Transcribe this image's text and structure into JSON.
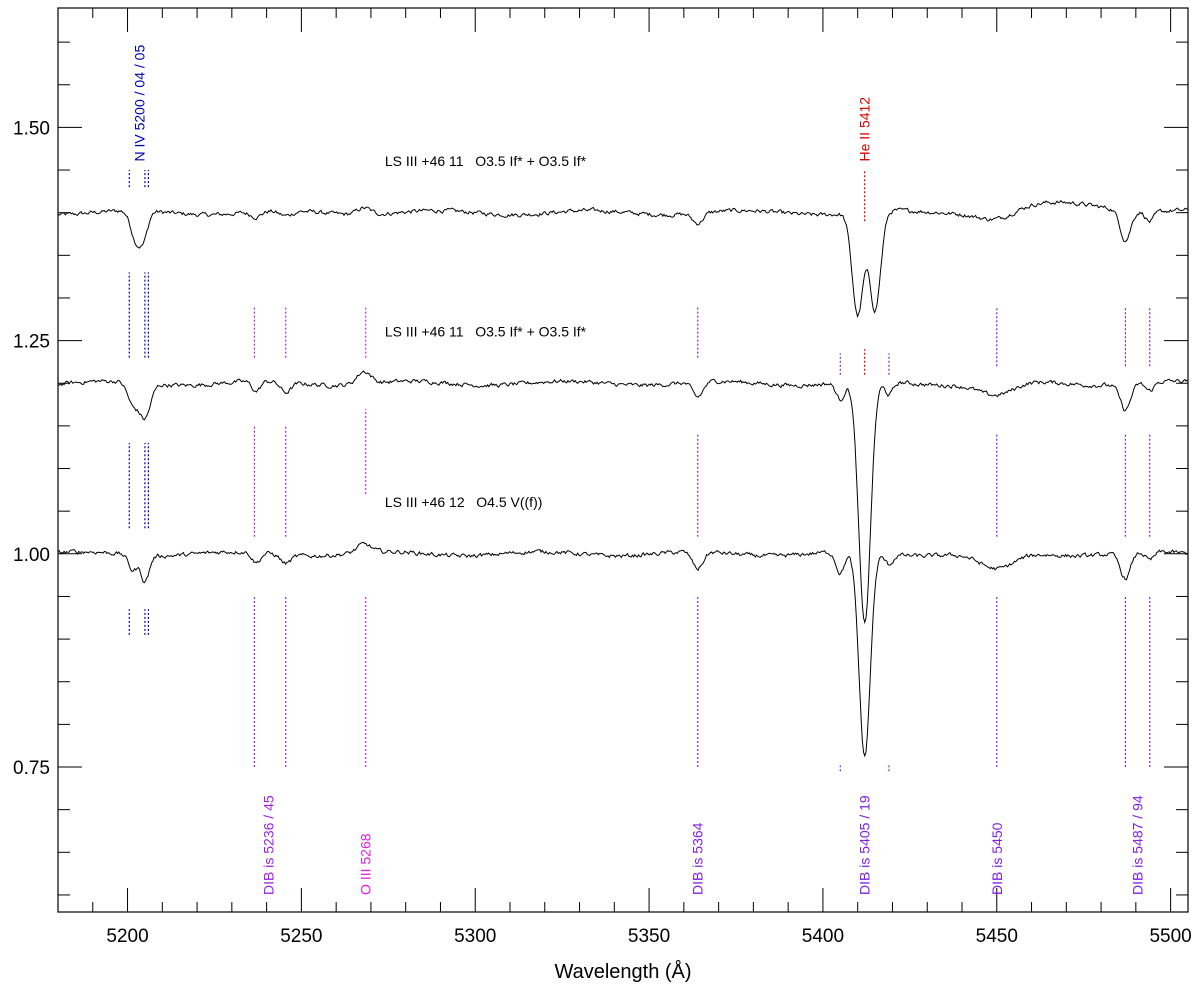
{
  "chart_data": {
    "type": "line",
    "title": "",
    "xlabel": "Wavelength (Å)",
    "ylabel": "",
    "xlim": [
      5180,
      5505
    ],
    "ylim": [
      0.58,
      1.64
    ],
    "x_ticks": [
      5200,
      5250,
      5300,
      5350,
      5400,
      5450,
      5500
    ],
    "x_tick_labels": [
      "5200",
      "5250",
      "5300",
      "5350",
      "5400",
      "5450",
      "5500"
    ],
    "y_ticks": [
      0.75,
      1.0,
      1.25,
      1.5
    ],
    "y_tick_labels": [
      "0.75",
      "1.00",
      "1.25",
      "1.50"
    ],
    "grid": false,
    "series": [
      {
        "name": "LS III +46 11   O3.5 If* + O3.5 If*",
        "offset": 1.4,
        "label_x": 5274,
        "label_y": 1.455,
        "features": [
          {
            "center": 5202.5,
            "depth": 0.035,
            "width": 1.5
          },
          {
            "center": 5204.8,
            "depth": 0.025,
            "width": 1.2
          },
          {
            "center": 5237,
            "depth": 0.006,
            "width": 1.5
          },
          {
            "center": 5245.5,
            "depth": 0.006,
            "width": 2
          },
          {
            "center": 5364,
            "depth": 0.012,
            "width": 1.5
          },
          {
            "center": 5410,
            "depth": 0.12,
            "width": 1.6
          },
          {
            "center": 5415,
            "depth": 0.115,
            "width": 1.6
          },
          {
            "center": 5450,
            "depth": 0.01,
            "width": 5
          },
          {
            "center": 5487,
            "depth": 0.035,
            "width": 1.5
          },
          {
            "center": 5494,
            "depth": 0.012,
            "width": 1.2
          },
          {
            "center": 5268,
            "depth": -0.008,
            "width": 2
          },
          {
            "center": 5470,
            "depth": -0.01,
            "width": 15
          }
        ]
      },
      {
        "name": "LS III +46 11   O3.5 If* + O3.5 If*",
        "offset": 1.2,
        "label_x": 5274,
        "label_y": 1.255,
        "features": [
          {
            "center": 5201.5,
            "depth": 0.025,
            "width": 1.5
          },
          {
            "center": 5205,
            "depth": 0.04,
            "width": 1.6
          },
          {
            "center": 5237,
            "depth": 0.012,
            "width": 1.2
          },
          {
            "center": 5245.5,
            "depth": 0.012,
            "width": 1.5
          },
          {
            "center": 5364,
            "depth": 0.018,
            "width": 1.5
          },
          {
            "center": 5405,
            "depth": 0.02,
            "width": 1.2
          },
          {
            "center": 5412,
            "depth": 0.285,
            "width": 1.7
          },
          {
            "center": 5419,
            "depth": 0.015,
            "width": 1.2
          },
          {
            "center": 5450,
            "depth": 0.015,
            "width": 5
          },
          {
            "center": 5487,
            "depth": 0.03,
            "width": 1.5
          },
          {
            "center": 5494,
            "depth": 0.01,
            "width": 1.2
          },
          {
            "center": 5268,
            "depth": -0.015,
            "width": 2
          }
        ]
      },
      {
        "name": "LS III +46 12   O4.5 V((f))",
        "offset": 1.0,
        "label_x": 5274,
        "label_y": 1.055,
        "features": [
          {
            "center": 5201.5,
            "depth": 0.018,
            "width": 1.2
          },
          {
            "center": 5205,
            "depth": 0.03,
            "width": 1.2
          },
          {
            "center": 5237,
            "depth": 0.012,
            "width": 1.2
          },
          {
            "center": 5245.5,
            "depth": 0.01,
            "width": 1.5
          },
          {
            "center": 5364,
            "depth": 0.02,
            "width": 1.5
          },
          {
            "center": 5405,
            "depth": 0.025,
            "width": 1.2
          },
          {
            "center": 5412,
            "depth": 0.24,
            "width": 1.6
          },
          {
            "center": 5419,
            "depth": 0.012,
            "width": 1.2
          },
          {
            "center": 5450,
            "depth": 0.02,
            "width": 5
          },
          {
            "center": 5487,
            "depth": 0.03,
            "width": 1.5
          },
          {
            "center": 5494,
            "depth": 0.01,
            "width": 1.2
          },
          {
            "center": 5268,
            "depth": -0.01,
            "width": 2
          }
        ]
      }
    ],
    "line_markers": [
      {
        "x": 5200.5,
        "color": "#0000b0",
        "segments": [
          [
            1.43,
            1.45
          ],
          [
            1.23,
            1.33
          ],
          [
            1.03,
            1.13
          ],
          [
            0.905,
            0.935
          ]
        ]
      },
      {
        "x": 5205,
        "color": "#0000b0",
        "segments": [
          [
            1.43,
            1.45
          ],
          [
            1.23,
            1.33
          ],
          [
            1.03,
            1.13
          ],
          [
            0.905,
            0.935
          ]
        ]
      },
      {
        "x": 5206,
        "color": "#0000b0",
        "segments": [
          [
            1.43,
            1.45
          ],
          [
            1.23,
            1.33
          ],
          [
            1.03,
            1.13
          ],
          [
            0.905,
            0.935
          ]
        ]
      },
      {
        "x": 5412,
        "color": "#e00000",
        "segments": [
          [
            1.39,
            1.45
          ],
          [
            1.21,
            1.24
          ]
        ]
      },
      {
        "x": 5236.5,
        "color": "#a020e0",
        "segments": [
          [
            1.23,
            1.29
          ],
          [
            1.02,
            1.15
          ],
          [
            0.75,
            0.95
          ]
        ]
      },
      {
        "x": 5245.5,
        "color": "#a020e0",
        "segments": [
          [
            1.23,
            1.29
          ],
          [
            1.02,
            1.15
          ],
          [
            0.75,
            0.95
          ]
        ]
      },
      {
        "x": 5268.5,
        "color": "#e020e0",
        "segments": [
          [
            1.23,
            1.29
          ],
          [
            1.07,
            1.17
          ],
          [
            0.75,
            0.95
          ]
        ]
      },
      {
        "x": 5364,
        "color": "#8020e0",
        "segments": [
          [
            1.23,
            1.29
          ],
          [
            1.02,
            1.14
          ],
          [
            0.75,
            0.95
          ]
        ]
      },
      {
        "x": 5405,
        "color": "#8020e0",
        "segments": [
          [
            1.21,
            1.235
          ],
          [
            0.745,
            0.752
          ]
        ]
      },
      {
        "x": 5419,
        "color": "#8020e0",
        "segments": [
          [
            1.21,
            1.235
          ],
          [
            0.745,
            0.752
          ]
        ]
      },
      {
        "x": 5450,
        "color": "#8020e0",
        "segments": [
          [
            1.22,
            1.29
          ],
          [
            1.02,
            1.14
          ],
          [
            0.75,
            0.95
          ]
        ]
      },
      {
        "x": 5487,
        "color": "#8020e0",
        "segments": [
          [
            1.22,
            1.29
          ],
          [
            1.02,
            1.14
          ],
          [
            0.75,
            0.95
          ]
        ]
      },
      {
        "x": 5494,
        "color": "#8020e0",
        "segments": [
          [
            1.22,
            1.29
          ],
          [
            1.02,
            1.14
          ],
          [
            0.75,
            0.95
          ]
        ]
      }
    ],
    "annotations": [
      {
        "text": "N IV 5200 / 04 / 05",
        "x": 5203.5,
        "y_anchor": 1.46,
        "color": "#0000b0"
      },
      {
        "text": "He II 5412",
        "x": 5412,
        "y_anchor": 1.46,
        "color": "#e00000"
      },
      {
        "text": "DIB is 5236 / 45",
        "x": 5240.5,
        "y_anchor": 0.6,
        "color": "#a020e0"
      },
      {
        "text": "O III 5268",
        "x": 5268.5,
        "y_anchor": 0.6,
        "color": "#e020e0"
      },
      {
        "text": "DIB is 5364",
        "x": 5364,
        "y_anchor": 0.6,
        "color": "#8020e0"
      },
      {
        "text": "DIB is 5405 / 19",
        "x": 5412,
        "y_anchor": 0.6,
        "color": "#8020e0"
      },
      {
        "text": "DIB is 5450",
        "x": 5450,
        "y_anchor": 0.6,
        "color": "#8020e0"
      },
      {
        "text": "DIB is 5487 / 94",
        "x": 5490.5,
        "y_anchor": 0.6,
        "color": "#8020e0"
      }
    ]
  }
}
